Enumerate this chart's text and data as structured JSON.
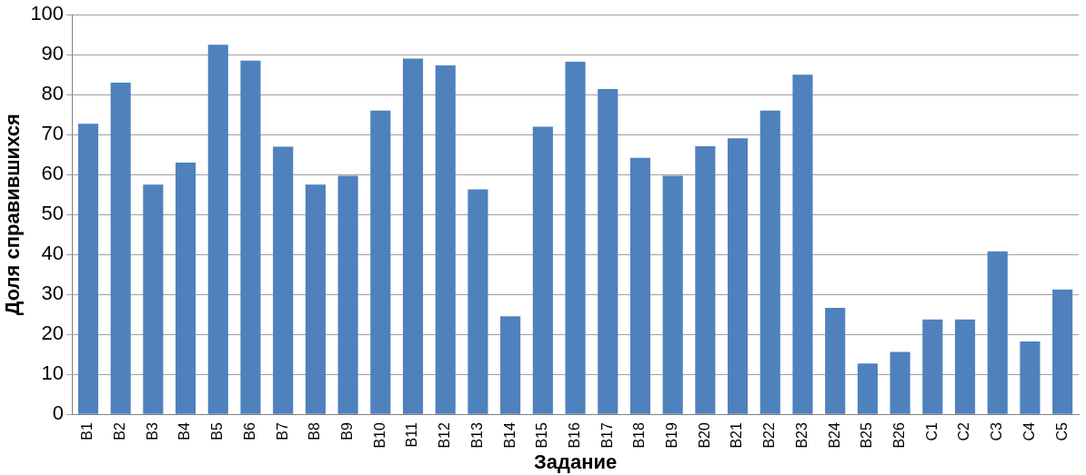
{
  "chart_data": {
    "type": "bar",
    "xlabel": "Задание",
    "ylabel": "Доля справившихся",
    "categories": [
      "B1",
      "B2",
      "B3",
      "B4",
      "B5",
      "B6",
      "B7",
      "B8",
      "B9",
      "B10",
      "B11",
      "B12",
      "B13",
      "B14",
      "B15",
      "B16",
      "B17",
      "B18",
      "B19",
      "B20",
      "B21",
      "B22",
      "B23",
      "B24",
      "B25",
      "B26",
      "C1",
      "C2",
      "C3",
      "C4",
      "C5"
    ],
    "values": [
      72.7,
      83,
      57.5,
      63,
      92.5,
      88.5,
      67,
      57.5,
      59.7,
      76,
      89,
      87.3,
      56.3,
      24.5,
      72,
      88.2,
      81.4,
      64.2,
      59.7,
      67.1,
      69.1,
      76,
      85,
      26.6,
      12.7,
      15.6,
      23.7,
      23.7,
      40.8,
      18.2,
      31.2
    ],
    "color": "#4f81bd",
    "ylim": [
      0,
      100
    ],
    "yticks": [
      0,
      10,
      20,
      30,
      40,
      50,
      60,
      70,
      80,
      90,
      100
    ],
    "grid": "y",
    "legend": false
  }
}
